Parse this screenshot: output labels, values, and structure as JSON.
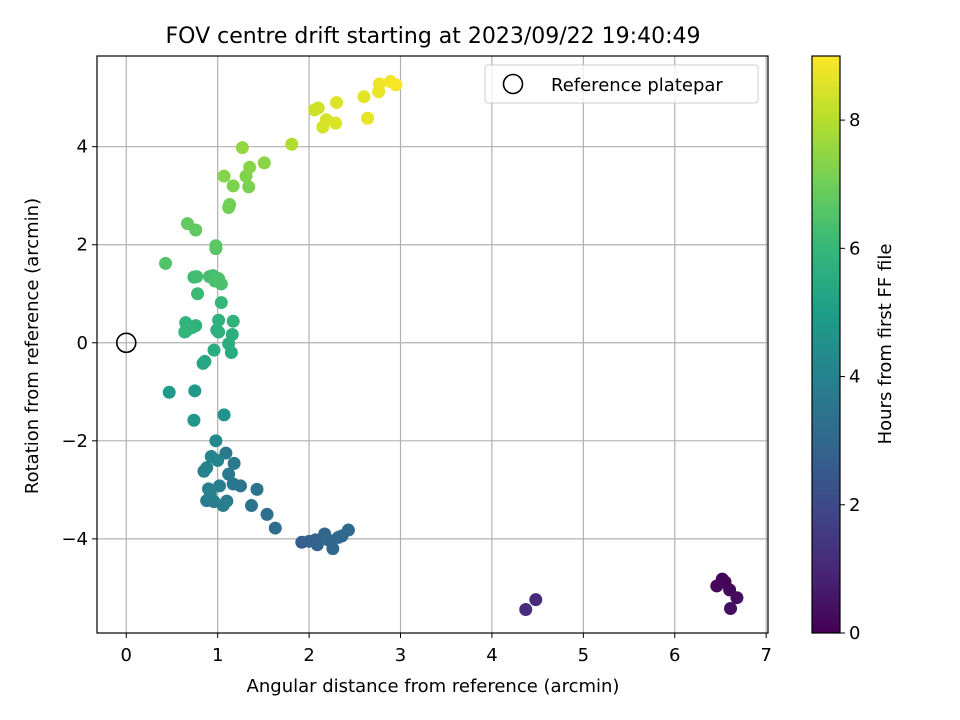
{
  "chart_data": {
    "type": "scatter",
    "title": "FOV centre drift starting at 2023/09/22 19:40:49",
    "xlabel": "Angular distance from reference (arcmin)",
    "ylabel": "Rotation from reference (arcmin)",
    "xlim": [
      -0.32,
      7.02
    ],
    "ylim": [
      -5.92,
      5.85
    ],
    "xticks": [
      0,
      1,
      2,
      3,
      4,
      5,
      6,
      7
    ],
    "yticks": [
      -4,
      -2,
      0,
      2,
      4
    ],
    "grid": true,
    "legend": {
      "position": "top-right",
      "entries": [
        "Reference platepar"
      ]
    },
    "reference_point": {
      "x": 0,
      "y": 0
    },
    "colorbar": {
      "label": "Hours from first FF file",
      "range": [
        0,
        9
      ],
      "ticks": [
        0,
        2,
        4,
        6,
        8
      ],
      "colormap": "viridis"
    },
    "points": [
      {
        "x": 6.52,
        "y": -4.82,
        "t": 0.05
      },
      {
        "x": 6.55,
        "y": -4.88,
        "t": 0.1
      },
      {
        "x": 6.46,
        "y": -4.96,
        "t": 0.15
      },
      {
        "x": 6.6,
        "y": -5.04,
        "t": 0.2
      },
      {
        "x": 6.68,
        "y": -5.2,
        "t": 0.3
      },
      {
        "x": 6.61,
        "y": -5.42,
        "t": 0.35
      },
      {
        "x": 4.48,
        "y": -5.24,
        "t": 1.1
      },
      {
        "x": 4.37,
        "y": -5.44,
        "t": 1.15
      },
      {
        "x": 1.92,
        "y": -4.07,
        "t": 2.7
      },
      {
        "x": 2.0,
        "y": -4.05,
        "t": 2.75
      },
      {
        "x": 2.07,
        "y": -4.02,
        "t": 2.8
      },
      {
        "x": 2.09,
        "y": -4.12,
        "t": 2.85
      },
      {
        "x": 2.17,
        "y": -3.9,
        "t": 2.9
      },
      {
        "x": 2.21,
        "y": -4.02,
        "t": 2.95
      },
      {
        "x": 2.26,
        "y": -4.2,
        "t": 3.0
      },
      {
        "x": 2.32,
        "y": -3.97,
        "t": 3.0
      },
      {
        "x": 2.36,
        "y": -3.94,
        "t": 3.05
      },
      {
        "x": 2.43,
        "y": -3.82,
        "t": 3.05
      },
      {
        "x": 1.63,
        "y": -3.78,
        "t": 3.2
      },
      {
        "x": 1.54,
        "y": -3.5,
        "t": 3.3
      },
      {
        "x": 1.37,
        "y": -3.32,
        "t": 3.4
      },
      {
        "x": 1.43,
        "y": -2.99,
        "t": 3.45
      },
      {
        "x": 1.25,
        "y": -2.92,
        "t": 3.5
      },
      {
        "x": 1.17,
        "y": -2.88,
        "t": 3.55
      },
      {
        "x": 1.12,
        "y": -2.68,
        "t": 3.6
      },
      {
        "x": 1.18,
        "y": -2.46,
        "t": 3.65
      },
      {
        "x": 1.09,
        "y": -2.25,
        "t": 3.7
      },
      {
        "x": 1.1,
        "y": -3.23,
        "t": 3.75
      },
      {
        "x": 1.06,
        "y": -3.32,
        "t": 3.8
      },
      {
        "x": 0.96,
        "y": -3.24,
        "t": 3.8
      },
      {
        "x": 0.88,
        "y": -3.22,
        "t": 3.85
      },
      {
        "x": 0.9,
        "y": -2.98,
        "t": 3.9
      },
      {
        "x": 1.02,
        "y": -2.92,
        "t": 3.9
      },
      {
        "x": 0.92,
        "y": -3.08,
        "t": 3.95
      },
      {
        "x": 0.85,
        "y": -2.62,
        "t": 4.0
      },
      {
        "x": 0.88,
        "y": -2.55,
        "t": 4.05
      },
      {
        "x": 0.93,
        "y": -2.32,
        "t": 4.1
      },
      {
        "x": 1.0,
        "y": -2.4,
        "t": 4.15
      },
      {
        "x": 0.98,
        "y": -2.0,
        "t": 4.2
      },
      {
        "x": 1.07,
        "y": -1.47,
        "t": 4.6
      },
      {
        "x": 0.74,
        "y": -1.58,
        "t": 4.7
      },
      {
        "x": 0.75,
        "y": -0.98,
        "t": 4.8
      },
      {
        "x": 0.47,
        "y": -1.01,
        "t": 4.9
      },
      {
        "x": 0.84,
        "y": -0.42,
        "t": 5.3
      },
      {
        "x": 0.86,
        "y": -0.38,
        "t": 5.35
      },
      {
        "x": 0.96,
        "y": -0.15,
        "t": 5.5
      },
      {
        "x": 1.15,
        "y": -0.2,
        "t": 5.55
      },
      {
        "x": 1.12,
        "y": -0.02,
        "t": 5.6
      },
      {
        "x": 1.16,
        "y": 0.17,
        "t": 5.65
      },
      {
        "x": 1.01,
        "y": 0.22,
        "t": 5.7
      },
      {
        "x": 0.99,
        "y": 0.26,
        "t": 5.7
      },
      {
        "x": 1.01,
        "y": 0.46,
        "t": 5.75
      },
      {
        "x": 1.17,
        "y": 0.44,
        "t": 5.8
      },
      {
        "x": 0.76,
        "y": 0.35,
        "t": 5.8
      },
      {
        "x": 0.72,
        "y": 0.31,
        "t": 5.85
      },
      {
        "x": 0.65,
        "y": 0.41,
        "t": 5.85
      },
      {
        "x": 0.66,
        "y": 0.25,
        "t": 5.9
      },
      {
        "x": 0.64,
        "y": 0.22,
        "t": 5.9
      },
      {
        "x": 1.04,
        "y": 0.82,
        "t": 6.0
      },
      {
        "x": 0.78,
        "y": 1.0,
        "t": 6.1
      },
      {
        "x": 0.74,
        "y": 1.34,
        "t": 6.2
      },
      {
        "x": 0.77,
        "y": 1.35,
        "t": 6.25
      },
      {
        "x": 0.91,
        "y": 1.35,
        "t": 6.3
      },
      {
        "x": 0.95,
        "y": 1.37,
        "t": 6.3
      },
      {
        "x": 0.97,
        "y": 1.26,
        "t": 6.35
      },
      {
        "x": 1.04,
        "y": 1.2,
        "t": 6.4
      },
      {
        "x": 1.01,
        "y": 1.31,
        "t": 6.4
      },
      {
        "x": 0.43,
        "y": 1.62,
        "t": 6.5
      },
      {
        "x": 0.98,
        "y": 1.92,
        "t": 6.6
      },
      {
        "x": 0.98,
        "y": 1.98,
        "t": 6.65
      },
      {
        "x": 0.76,
        "y": 2.3,
        "t": 6.75
      },
      {
        "x": 0.67,
        "y": 2.43,
        "t": 6.8
      },
      {
        "x": 1.12,
        "y": 2.76,
        "t": 7.0
      },
      {
        "x": 1.13,
        "y": 2.82,
        "t": 7.05
      },
      {
        "x": 1.34,
        "y": 3.18,
        "t": 7.15
      },
      {
        "x": 1.17,
        "y": 3.2,
        "t": 7.2
      },
      {
        "x": 1.31,
        "y": 3.4,
        "t": 7.25
      },
      {
        "x": 1.07,
        "y": 3.4,
        "t": 7.3
      },
      {
        "x": 1.35,
        "y": 3.58,
        "t": 7.35
      },
      {
        "x": 1.51,
        "y": 3.67,
        "t": 7.4
      },
      {
        "x": 1.27,
        "y": 3.98,
        "t": 7.5
      },
      {
        "x": 1.81,
        "y": 4.05,
        "t": 7.9
      },
      {
        "x": 2.06,
        "y": 4.75,
        "t": 8.3
      },
      {
        "x": 2.1,
        "y": 4.79,
        "t": 8.35
      },
      {
        "x": 2.15,
        "y": 4.4,
        "t": 8.4
      },
      {
        "x": 2.19,
        "y": 4.55,
        "t": 8.45
      },
      {
        "x": 2.29,
        "y": 4.48,
        "t": 8.5
      },
      {
        "x": 2.3,
        "y": 4.9,
        "t": 8.55
      },
      {
        "x": 2.6,
        "y": 5.02,
        "t": 8.65
      },
      {
        "x": 2.64,
        "y": 4.58,
        "t": 8.7
      },
      {
        "x": 2.76,
        "y": 5.12,
        "t": 8.75
      },
      {
        "x": 2.77,
        "y": 5.28,
        "t": 8.8
      },
      {
        "x": 2.89,
        "y": 5.33,
        "t": 8.85
      },
      {
        "x": 2.95,
        "y": 5.26,
        "t": 8.9
      }
    ]
  }
}
